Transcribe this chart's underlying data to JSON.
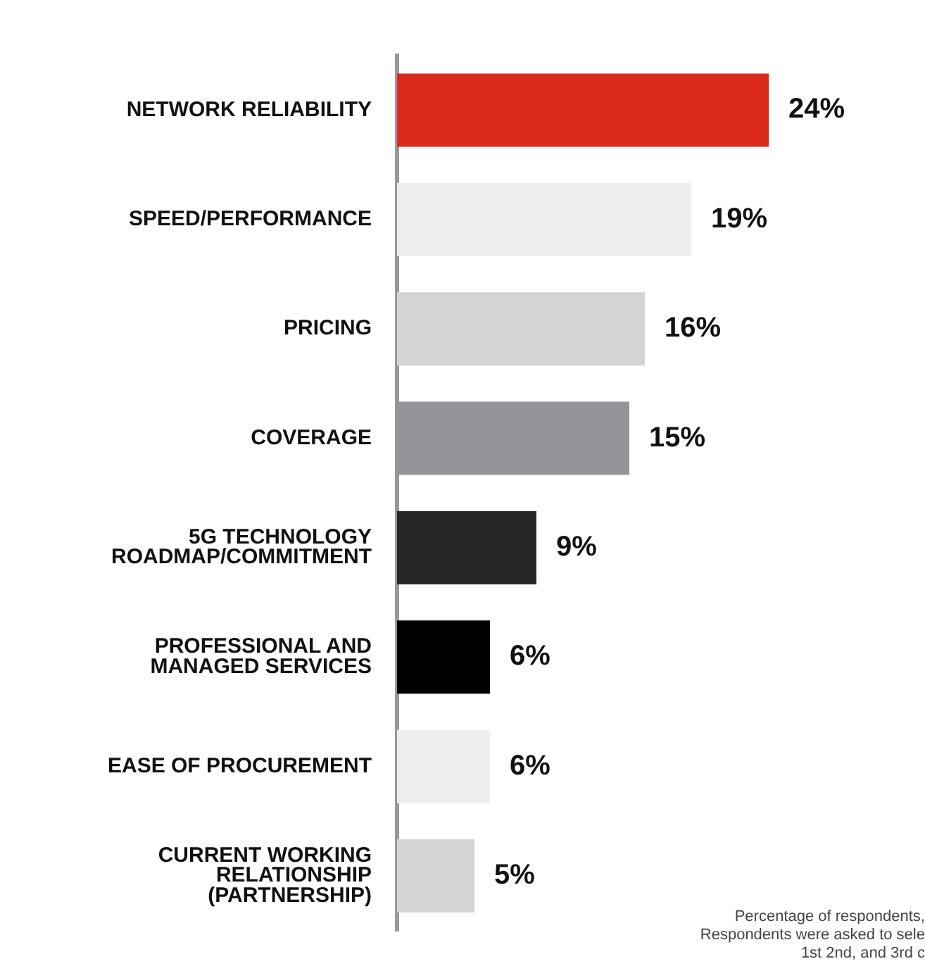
{
  "chart_data": {
    "type": "bar",
    "orientation": "horizontal",
    "categories": [
      "NETWORK RELIABILITY",
      "SPEED/PERFORMANCE",
      "PRICING",
      "COVERAGE",
      "5G TECHNOLOGY\nROADMAP/COMMITMENT",
      "PROFESSIONAL AND\nMANAGED SERVICES",
      "EASE OF PROCUREMENT",
      "CURRENT WORKING\nRELATIONSHIP\n(PARTNERSHIP)"
    ],
    "values": [
      24,
      19,
      16,
      15,
      9,
      6,
      6,
      5
    ],
    "value_labels": [
      "24%",
      "19%",
      "16%",
      "15%",
      "9%",
      "6%",
      "6%",
      "5%"
    ],
    "colors": [
      "#dc291e",
      "#efefef",
      "#d3d4d6",
      "#939598",
      "#262626",
      "#000000",
      "#efefef",
      "#d3d4d6"
    ],
    "annotations": [
      "Percentage of respondents,\nRespondents were asked to sele\n1st 2nd, and 3rd c"
    ]
  }
}
